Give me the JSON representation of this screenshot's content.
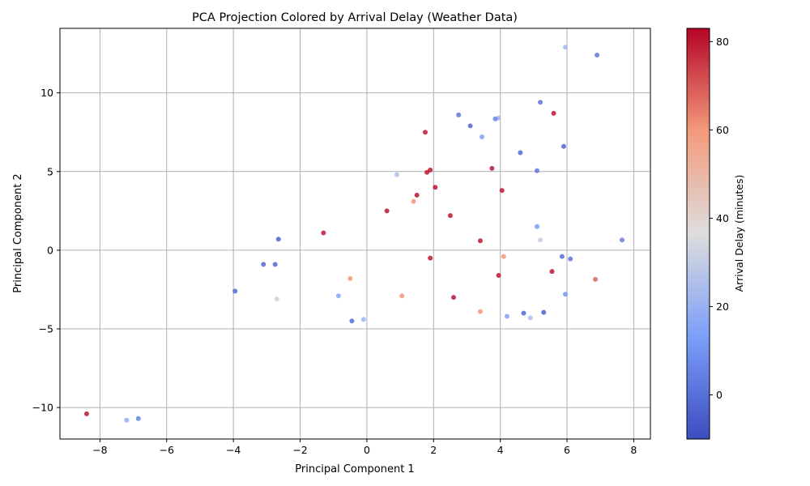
{
  "chart_data": {
    "type": "scatter",
    "title": "PCA Projection Colored by Arrival Delay (Weather Data)",
    "xlabel": "Principal Component 1",
    "ylabel": "Principal Component 2",
    "xlim": [
      -9.2,
      8.5
    ],
    "ylim": [
      -12.0,
      14.1
    ],
    "xticks": [
      -8,
      -6,
      -4,
      -2,
      0,
      2,
      4,
      6,
      8
    ],
    "yticks": [
      -10,
      -5,
      0,
      5,
      10
    ],
    "grid": true,
    "colormap": "coolwarm",
    "colorbar": {
      "label": "Arrival Delay (minutes)",
      "range": [
        -10,
        83
      ],
      "ticks": [
        0,
        20,
        40,
        60,
        80
      ]
    },
    "points": [
      {
        "x": -8.4,
        "y": -10.4,
        "c": 80
      },
      {
        "x": -7.2,
        "y": -10.8,
        "c": 18
      },
      {
        "x": -6.85,
        "y": -10.7,
        "c": 5
      },
      {
        "x": -3.95,
        "y": -2.6,
        "c": -2
      },
      {
        "x": -2.7,
        "y": -3.1,
        "c": 32
      },
      {
        "x": -3.1,
        "y": -0.9,
        "c": -3
      },
      {
        "x": -2.75,
        "y": -0.9,
        "c": -2
      },
      {
        "x": -2.65,
        "y": 0.7,
        "c": -4
      },
      {
        "x": -0.45,
        "y": -4.5,
        "c": 0
      },
      {
        "x": -0.1,
        "y": -4.4,
        "c": 20
      },
      {
        "x": -0.85,
        "y": -2.9,
        "c": 16
      },
      {
        "x": -0.5,
        "y": -1.8,
        "c": 60
      },
      {
        "x": 0.9,
        "y": 4.8,
        "c": 25
      },
      {
        "x": 1.75,
        "y": 7.5,
        "c": 80
      },
      {
        "x": 1.8,
        "y": 4.95,
        "c": 80
      },
      {
        "x": 1.9,
        "y": 5.1,
        "c": 80
      },
      {
        "x": 2.05,
        "y": 4.0,
        "c": 80
      },
      {
        "x": 2.75,
        "y": 8.6,
        "c": 2
      },
      {
        "x": 3.1,
        "y": 7.9,
        "c": -2
      },
      {
        "x": 3.45,
        "y": 7.2,
        "c": 14
      },
      {
        "x": 3.95,
        "y": 8.4,
        "c": 22
      },
      {
        "x": 3.85,
        "y": 8.35,
        "c": 5
      },
      {
        "x": 3.75,
        "y": 5.2,
        "c": 80
      },
      {
        "x": 4.05,
        "y": 3.8,
        "c": 80
      },
      {
        "x": 5.2,
        "y": 9.4,
        "c": 2
      },
      {
        "x": 5.6,
        "y": 8.7,
        "c": 80
      },
      {
        "x": 5.95,
        "y": 12.9,
        "c": 22
      },
      {
        "x": 6.9,
        "y": 12.4,
        "c": 2
      },
      {
        "x": 5.9,
        "y": 6.6,
        "c": -3
      },
      {
        "x": 4.6,
        "y": 6.2,
        "c": -2
      },
      {
        "x": 5.1,
        "y": 5.05,
        "c": 2
      },
      {
        "x": 5.1,
        "y": 1.5,
        "c": 12
      },
      {
        "x": 5.2,
        "y": 0.65,
        "c": 30
      },
      {
        "x": 6.1,
        "y": -0.55,
        "c": 2
      },
      {
        "x": 5.85,
        "y": -0.4,
        "c": 0
      },
      {
        "x": 5.55,
        "y": -1.35,
        "c": 80
      },
      {
        "x": 5.95,
        "y": -2.8,
        "c": 10
      },
      {
        "x": 6.85,
        "y": -1.85,
        "c": 68
      },
      {
        "x": 7.65,
        "y": 0.65,
        "c": 5
      },
      {
        "x": 5.3,
        "y": -3.95,
        "c": -4
      },
      {
        "x": 4.9,
        "y": -4.3,
        "c": 25
      },
      {
        "x": 4.7,
        "y": -4.0,
        "c": -2
      },
      {
        "x": 4.2,
        "y": -4.2,
        "c": 14
      },
      {
        "x": 3.4,
        "y": -3.9,
        "c": 60
      },
      {
        "x": 3.95,
        "y": -1.6,
        "c": 80
      },
      {
        "x": 4.1,
        "y": -0.4,
        "c": 60
      },
      {
        "x": 1.05,
        "y": -2.9,
        "c": 60
      },
      {
        "x": 1.4,
        "y": 3.1,
        "c": 60
      },
      {
        "x": 3.4,
        "y": 0.6,
        "c": 80
      },
      {
        "x": 2.5,
        "y": 2.2,
        "c": 80
      },
      {
        "x": 0.6,
        "y": 2.5,
        "c": 80
      },
      {
        "x": 1.5,
        "y": 3.5,
        "c": 80
      },
      {
        "x": -1.3,
        "y": 1.1,
        "c": 80
      },
      {
        "x": 2.6,
        "y": -3.0,
        "c": 80
      },
      {
        "x": 1.9,
        "y": -0.5,
        "c": 80
      }
    ]
  }
}
